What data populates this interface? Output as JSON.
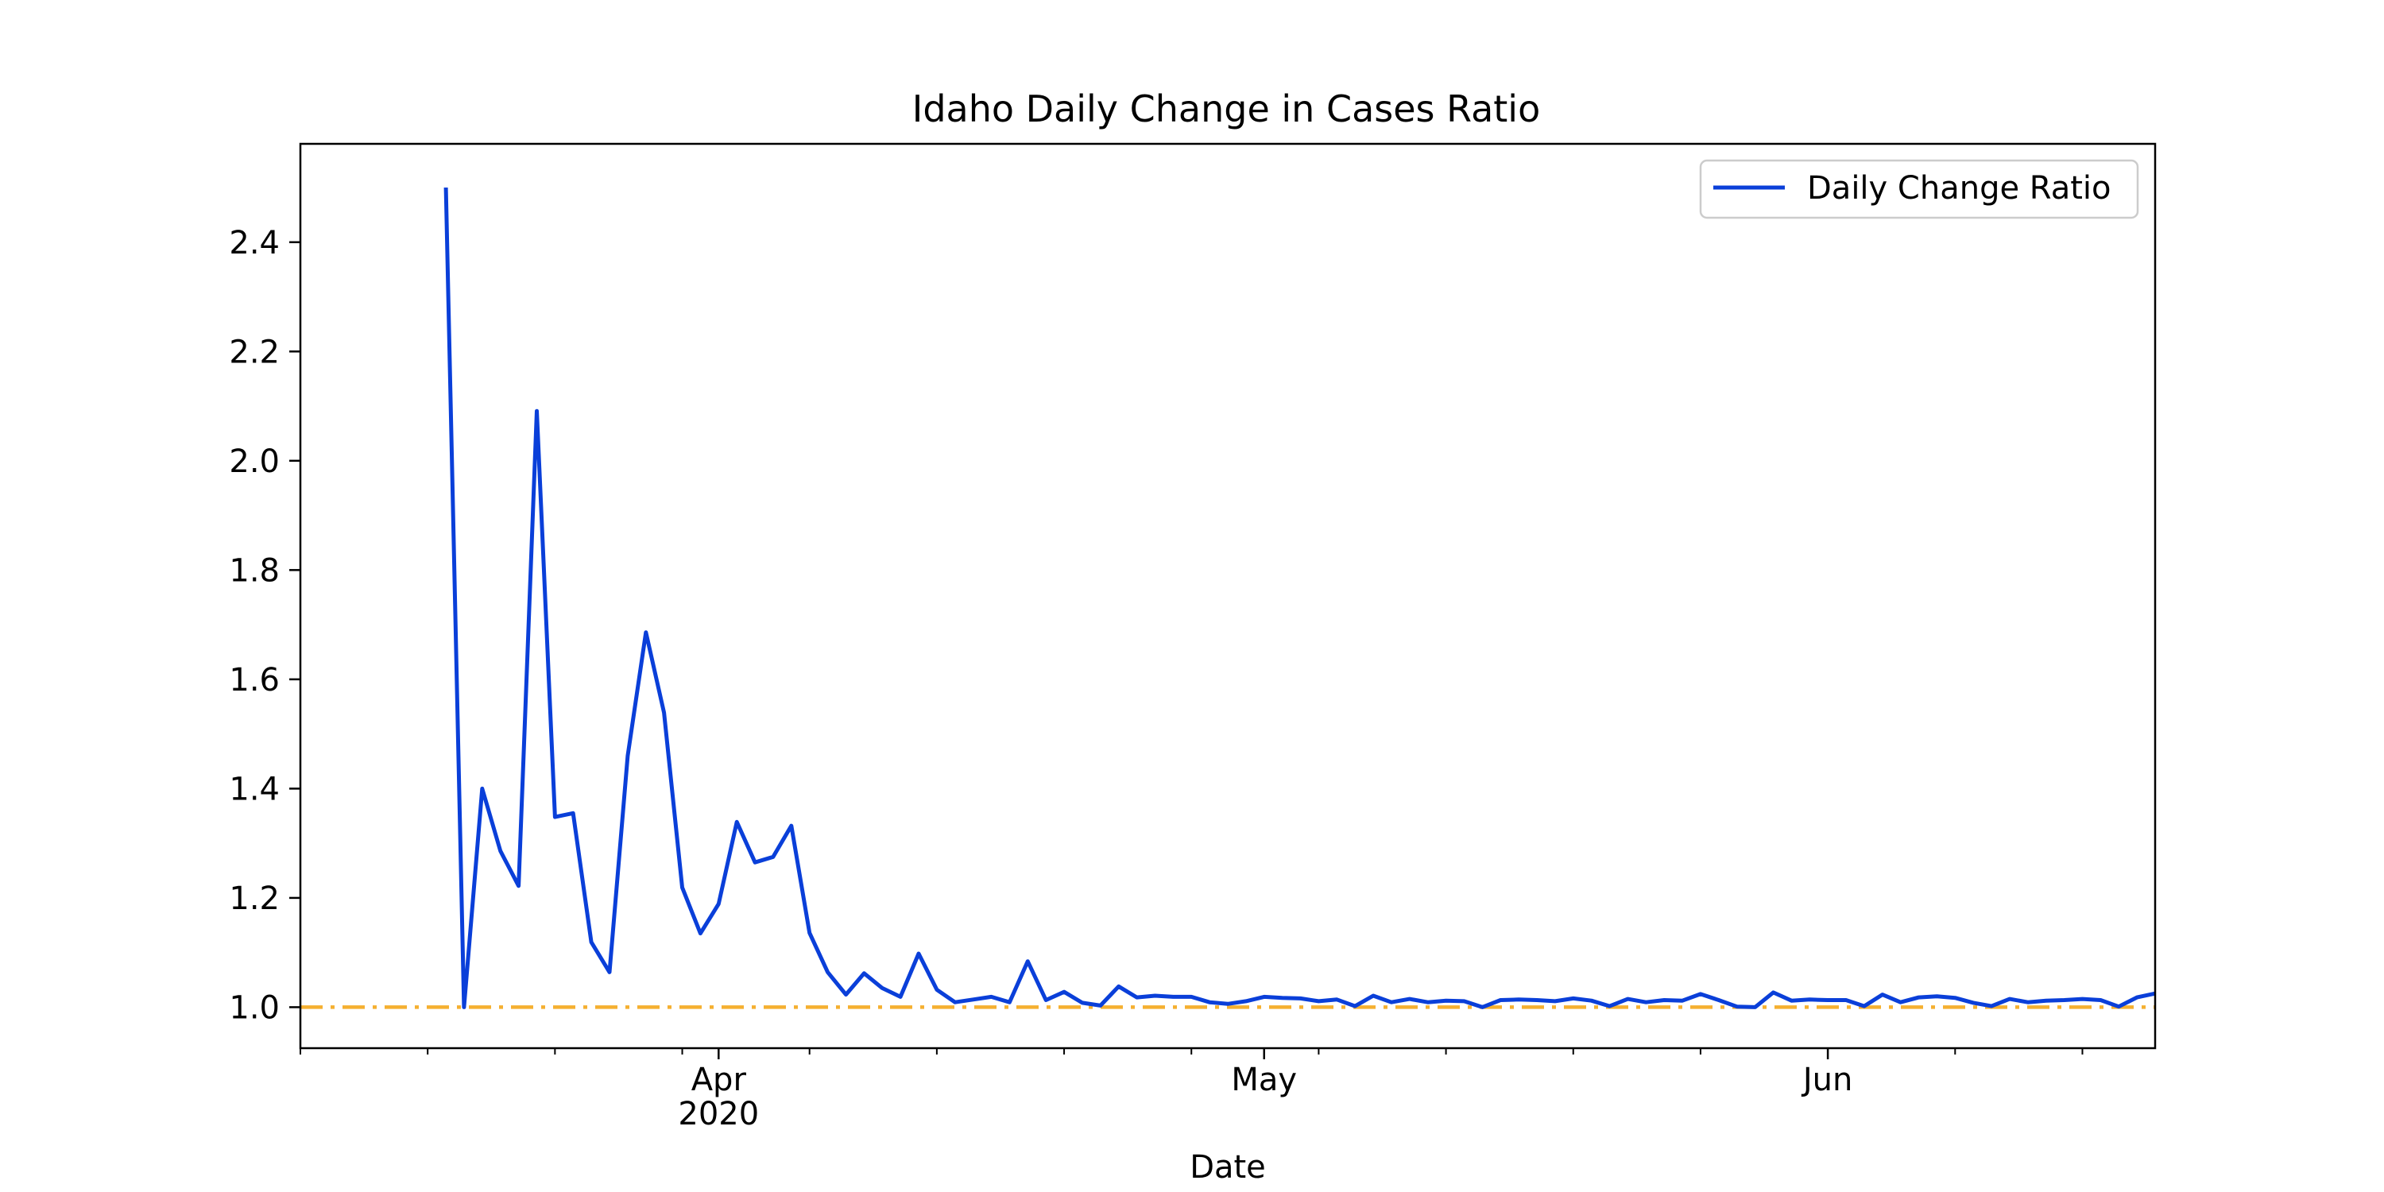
{
  "chart_data": {
    "type": "line",
    "title": "Idaho Daily Change in Cases Ratio",
    "xlabel": "Date",
    "ylabel": "",
    "x_start": "2020-03-09",
    "x_end": "2020-06-19",
    "ylim": [
      0.925,
      2.58
    ],
    "y_ticks": [
      1.0,
      1.2,
      1.4,
      1.6,
      1.8,
      2.0,
      2.2,
      2.4
    ],
    "y_tick_labels": [
      "1.0",
      "1.2",
      "1.4",
      "1.6",
      "1.8",
      "2.0",
      "2.2",
      "2.4"
    ],
    "x_major_ticks": [
      {
        "date": "2020-04-01",
        "label": "Apr",
        "sublabel": "2020"
      },
      {
        "date": "2020-05-01",
        "label": "May",
        "sublabel": ""
      },
      {
        "date": "2020-06-01",
        "label": "Jun",
        "sublabel": ""
      }
    ],
    "x_minor_ticks": [
      "2020-03-09",
      "2020-03-16",
      "2020-03-23",
      "2020-03-30",
      "2020-04-06",
      "2020-04-13",
      "2020-04-20",
      "2020-04-27",
      "2020-05-04",
      "2020-05-11",
      "2020-05-18",
      "2020-05-25",
      "2020-06-08",
      "2020-06-15"
    ],
    "legend_position": "top-right",
    "grid": false,
    "series": [
      {
        "name": "Daily Change Ratio",
        "color": "#0a3fd9",
        "points": [
          [
            "2020-03-17",
            2.5
          ],
          [
            "2020-03-18",
            1.0
          ],
          [
            "2020-03-19",
            1.4
          ],
          [
            "2020-03-20",
            1.286
          ],
          [
            "2020-03-21",
            1.222
          ],
          [
            "2020-03-22",
            2.091
          ],
          [
            "2020-03-23",
            1.348
          ],
          [
            "2020-03-24",
            1.355
          ],
          [
            "2020-03-25",
            1.119
          ],
          [
            "2020-03-26",
            1.064
          ],
          [
            "2020-03-27",
            1.46
          ],
          [
            "2020-03-28",
            1.686
          ],
          [
            "2020-03-29",
            1.539
          ],
          [
            "2020-03-30",
            1.219
          ],
          [
            "2020-03-31",
            1.135
          ],
          [
            "2020-04-01",
            1.189
          ],
          [
            "2020-04-02",
            1.339
          ],
          [
            "2020-04-03",
            1.265
          ],
          [
            "2020-04-04",
            1.275
          ],
          [
            "2020-04-05",
            1.332
          ],
          [
            "2020-04-06",
            1.136
          ],
          [
            "2020-04-07",
            1.064
          ],
          [
            "2020-04-08",
            1.023
          ],
          [
            "2020-04-09",
            1.062
          ],
          [
            "2020-04-10",
            1.035
          ],
          [
            "2020-04-11",
            1.019
          ],
          [
            "2020-04-12",
            1.098
          ],
          [
            "2020-04-13",
            1.032
          ],
          [
            "2020-04-14",
            1.009
          ],
          [
            "2020-04-15",
            1.014
          ],
          [
            "2020-04-16",
            1.019
          ],
          [
            "2020-04-17",
            1.009
          ],
          [
            "2020-04-18",
            1.084
          ],
          [
            "2020-04-19",
            1.013
          ],
          [
            "2020-04-20",
            1.028
          ],
          [
            "2020-04-21",
            1.008
          ],
          [
            "2020-04-22",
            1.003
          ],
          [
            "2020-04-23",
            1.038
          ],
          [
            "2020-04-24",
            1.018
          ],
          [
            "2020-04-25",
            1.021
          ],
          [
            "2020-04-26",
            1.019
          ],
          [
            "2020-04-27",
            1.019
          ],
          [
            "2020-04-28",
            1.009
          ],
          [
            "2020-04-29",
            1.006
          ],
          [
            "2020-04-30",
            1.011
          ],
          [
            "2020-05-01",
            1.019
          ],
          [
            "2020-05-02",
            1.017
          ],
          [
            "2020-05-03",
            1.016
          ],
          [
            "2020-05-04",
            1.011
          ],
          [
            "2020-05-05",
            1.014
          ],
          [
            "2020-05-06",
            1.002
          ],
          [
            "2020-05-07",
            1.021
          ],
          [
            "2020-05-08",
            1.009
          ],
          [
            "2020-05-09",
            1.015
          ],
          [
            "2020-05-10",
            1.009
          ],
          [
            "2020-05-11",
            1.012
          ],
          [
            "2020-05-12",
            1.011
          ],
          [
            "2020-05-13",
            1.0
          ],
          [
            "2020-05-14",
            1.013
          ],
          [
            "2020-05-15",
            1.014
          ],
          [
            "2020-05-16",
            1.013
          ],
          [
            "2020-05-17",
            1.011
          ],
          [
            "2020-05-18",
            1.016
          ],
          [
            "2020-05-19",
            1.012
          ],
          [
            "2020-05-20",
            1.002
          ],
          [
            "2020-05-21",
            1.015
          ],
          [
            "2020-05-22",
            1.009
          ],
          [
            "2020-05-23",
            1.013
          ],
          [
            "2020-05-24",
            1.012
          ],
          [
            "2020-05-25",
            1.024
          ],
          [
            "2020-05-26",
            1.013
          ],
          [
            "2020-05-27",
            1.001
          ],
          [
            "2020-05-28",
            1.0
          ],
          [
            "2020-05-29",
            1.027
          ],
          [
            "2020-05-30",
            1.012
          ],
          [
            "2020-05-31",
            1.014
          ],
          [
            "2020-06-01",
            1.013
          ],
          [
            "2020-06-02",
            1.013
          ],
          [
            "2020-06-03",
            1.002
          ],
          [
            "2020-06-04",
            1.023
          ],
          [
            "2020-06-05",
            1.009
          ],
          [
            "2020-06-06",
            1.018
          ],
          [
            "2020-06-07",
            1.02
          ],
          [
            "2020-06-08",
            1.017
          ],
          [
            "2020-06-09",
            1.008
          ],
          [
            "2020-06-10",
            1.002
          ],
          [
            "2020-06-11",
            1.015
          ],
          [
            "2020-06-12",
            1.009
          ],
          [
            "2020-06-13",
            1.012
          ],
          [
            "2020-06-14",
            1.013
          ],
          [
            "2020-06-15",
            1.015
          ],
          [
            "2020-06-16",
            1.013
          ],
          [
            "2020-06-17",
            1.001
          ],
          [
            "2020-06-18",
            1.018
          ],
          [
            "2020-06-19",
            1.025
          ]
        ]
      }
    ],
    "reference_line": {
      "y": 1.0,
      "color": "#f5b030",
      "style": "dash-dot"
    }
  }
}
